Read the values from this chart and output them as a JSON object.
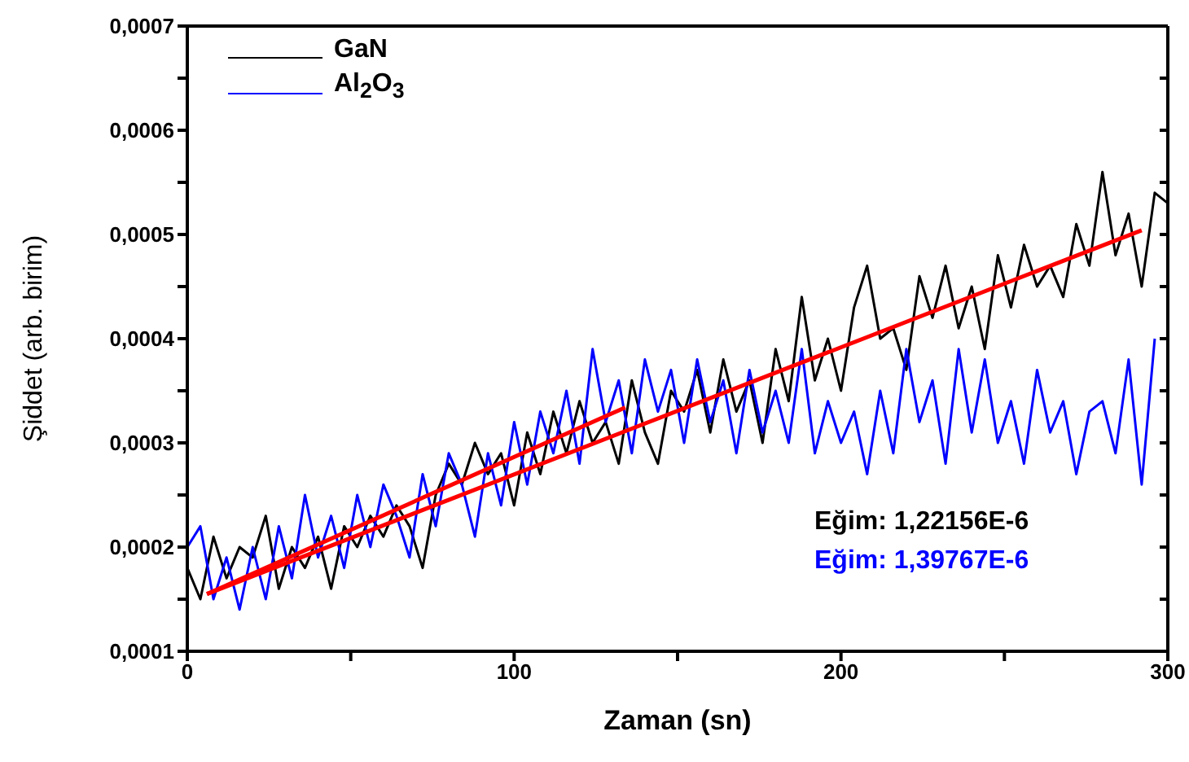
{
  "chart_data": {
    "type": "line",
    "xlabel": "Zaman (sn)",
    "ylabel": "Şiddet (arb. birim)",
    "xlim": [
      0,
      300
    ],
    "xticks": [
      0,
      {
        "value": 50,
        "label": null
      },
      100,
      {
        "value": 150,
        "label": null
      },
      200,
      {
        "value": 250,
        "label": null
      },
      300
    ],
    "ylim": [
      0.0001,
      0.0007
    ],
    "yticks": [
      {
        "value": 0.0001,
        "label": "0,0001"
      },
      {
        "value": 0.00015,
        "label": null
      },
      {
        "value": 0.0002,
        "label": "0,0002"
      },
      {
        "value": 0.00025,
        "label": null
      },
      {
        "value": 0.0003,
        "label": "0,0003"
      },
      {
        "value": 0.00035,
        "label": null
      },
      {
        "value": 0.0004,
        "label": "0,0004"
      },
      {
        "value": 0.00045,
        "label": null
      },
      {
        "value": 0.0005,
        "label": "0,0005"
      },
      {
        "value": 0.00055,
        "label": null
      },
      {
        "value": 0.0006,
        "label": "0,0006"
      },
      {
        "value": 0.00065,
        "label": null
      },
      {
        "value": 0.0007,
        "label": "0,0007"
      }
    ],
    "grid": false,
    "legend": "top left",
    "marker": "none",
    "line_style": "solid",
    "annotations": [
      "Eğim: 1,22156E-6",
      "Eğim: 1,39767E-6"
    ],
    "x": [
      0,
      4,
      8,
      12,
      16,
      20,
      24,
      28,
      32,
      36,
      40,
      44,
      48,
      52,
      56,
      60,
      64,
      68,
      72,
      76,
      80,
      84,
      88,
      92,
      96,
      100,
      104,
      108,
      112,
      116,
      120,
      124,
      128,
      132,
      136,
      140,
      144,
      148,
      152,
      156,
      160,
      164,
      168,
      172,
      176,
      180,
      184,
      188,
      192,
      196,
      200,
      204,
      208,
      212,
      216,
      220,
      224,
      228,
      232,
      236,
      240,
      244,
      248,
      252,
      256,
      260,
      264,
      268,
      272,
      276,
      280,
      284,
      288,
      292,
      296,
      300
    ],
    "series": [
      {
        "name": "GaN",
        "color": "#000000",
        "values": [
          0.00018,
          0.00015,
          0.00021,
          0.00017,
          0.0002,
          0.00019,
          0.00023,
          0.00016,
          0.0002,
          0.00018,
          0.00021,
          0.00016,
          0.00022,
          0.0002,
          0.00023,
          0.00021,
          0.00024,
          0.00022,
          0.00018,
          0.00025,
          0.00028,
          0.00026,
          0.0003,
          0.00027,
          0.00029,
          0.00024,
          0.00031,
          0.00027,
          0.00033,
          0.00029,
          0.00034,
          0.0003,
          0.00032,
          0.00028,
          0.00036,
          0.00031,
          0.00028,
          0.00035,
          0.00033,
          0.00037,
          0.00031,
          0.00038,
          0.00033,
          0.00036,
          0.0003,
          0.00039,
          0.00034,
          0.00044,
          0.00036,
          0.0004,
          0.00035,
          0.00043,
          0.00047,
          0.0004,
          0.00041,
          0.00037,
          0.00046,
          0.00042,
          0.00047,
          0.00041,
          0.00045,
          0.00039,
          0.00048,
          0.00043,
          0.00049,
          0.00045,
          0.00047,
          0.00044,
          0.00051,
          0.00047,
          0.00056,
          0.00048,
          0.00052,
          0.00045,
          0.00054,
          0.00053
        ]
      },
      {
        "name": "Al$_{2}$O$_{3}$",
        "color": "#0000ff",
        "values": [
          0.0002,
          0.00022,
          0.00015,
          0.00019,
          0.00014,
          0.0002,
          0.00015,
          0.00022,
          0.00017,
          0.00025,
          0.00019,
          0.00023,
          0.00018,
          0.00025,
          0.0002,
          0.00026,
          0.00023,
          0.00019,
          0.00027,
          0.00022,
          0.00029,
          0.00026,
          0.00021,
          0.00029,
          0.00024,
          0.00032,
          0.00026,
          0.00033,
          0.00029,
          0.00035,
          0.00028,
          0.00039,
          0.00032,
          0.00036,
          0.00029,
          0.00038,
          0.00033,
          0.00037,
          0.0003,
          0.00038,
          0.00032,
          0.00036,
          0.00029,
          0.00037,
          0.00031,
          0.00035,
          0.0003,
          0.00039,
          0.00029,
          0.00034,
          0.0003,
          0.00033,
          0.00027,
          0.00035,
          0.00029,
          0.00039,
          0.00032,
          0.00036,
          0.00028,
          0.00039,
          0.00031,
          0.00038,
          0.0003,
          0.00034,
          0.00028,
          0.00037,
          0.00031,
          0.00034,
          0.00027,
          0.00033,
          0.00034,
          0.00029,
          0.00038,
          0.00026,
          0.0004,
          null
        ]
      },
      {
        "type": "line",
        "color": "#ff0000",
        "x": [
          6,
          292
        ],
        "values": [
          0.000155,
          0.000504
        ]
      },
      {
        "type": "line",
        "color": "#ff0000",
        "x": [
          6,
          134
        ],
        "values": [
          0.000155,
          0.000334
        ]
      }
    ]
  }
}
